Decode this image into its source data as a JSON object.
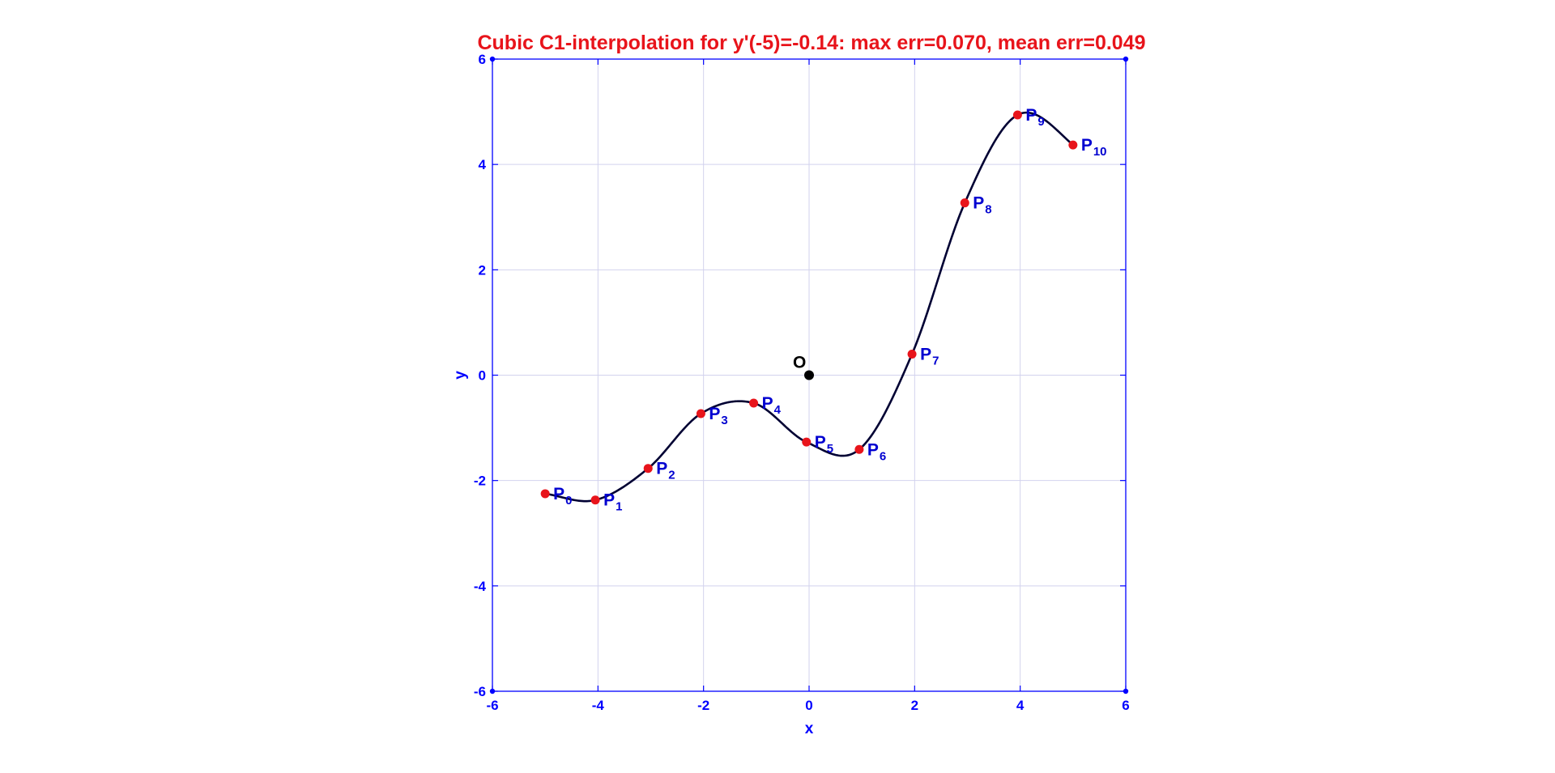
{
  "chart_data": {
    "type": "line",
    "title": "Cubic C1-interpolation  for y'(-5)=-0.14: max err=0.070, mean err=0.049",
    "xlabel": "x",
    "ylabel": "y",
    "xlim": [
      -6,
      6
    ],
    "ylim": [
      -6,
      6
    ],
    "xticks": [
      -6,
      -4,
      -2,
      0,
      2,
      4,
      6
    ],
    "yticks": [
      -6,
      -4,
      -2,
      0,
      2,
      4,
      6
    ],
    "xtick_labels": [
      "-6",
      "-4",
      "-2",
      "0",
      "2",
      "4",
      "6"
    ],
    "ytick_labels": [
      "-6",
      "-4",
      "-2",
      "0",
      "2",
      "4",
      "6"
    ],
    "grid": true,
    "colors": {
      "title": "#e8141b",
      "axes": "#0000ff",
      "grid": "#d2d2ee",
      "curve": "#000033",
      "points": "#e8141b",
      "point_labels": "#0000d0",
      "origin": "#000000"
    },
    "series": [
      {
        "type": "scatter",
        "points": [
          {
            "label": "P",
            "sub": "0",
            "x": -5.0,
            "y": -2.25
          },
          {
            "label": "P",
            "sub": "1",
            "x": -4.05,
            "y": -2.37
          },
          {
            "label": "P",
            "sub": "2",
            "x": -3.05,
            "y": -1.77
          },
          {
            "label": "P",
            "sub": "3",
            "x": -2.05,
            "y": -0.73
          },
          {
            "label": "P",
            "sub": "4",
            "x": -1.05,
            "y": -0.53
          },
          {
            "label": "P",
            "sub": "5",
            "x": -0.05,
            "y": -1.27
          },
          {
            "label": "P",
            "sub": "6",
            "x": 0.95,
            "y": -1.41
          },
          {
            "label": "P",
            "sub": "7",
            "x": 1.95,
            "y": 0.4
          },
          {
            "label": "P",
            "sub": "8",
            "x": 2.95,
            "y": 3.27
          },
          {
            "label": "P",
            "sub": "9",
            "x": 3.95,
            "y": 4.94
          },
          {
            "label": "P",
            "sub": "10",
            "x": 5.0,
            "y": 4.37
          }
        ]
      },
      {
        "type": "line",
        "start_slope": -0.14
      }
    ],
    "origin": {
      "label": "O",
      "x": 0,
      "y": 0
    }
  }
}
